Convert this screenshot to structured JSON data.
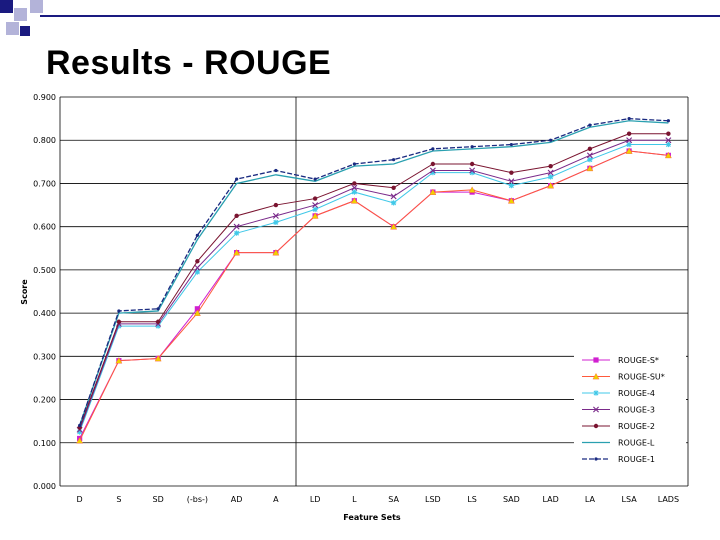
{
  "slide": {
    "title": "Results - ROUGE",
    "colors": {
      "square_dark": "#1a1a80",
      "square_light": "#b3b3d9",
      "title_line": "#1a1a80"
    }
  },
  "chart_data": {
    "type": "line",
    "xlabel": "Feature Sets",
    "ylabel": "Score",
    "ylim": [
      0,
      0.9
    ],
    "yticks": [
      "0.000",
      "0.100",
      "0.200",
      "0.300",
      "0.400",
      "0.500",
      "0.600",
      "0.700",
      "0.800",
      "0.900"
    ],
    "grid": "horizontal",
    "legend": "bottom-right",
    "categories": [
      "D",
      "S",
      "SD",
      "(-bs-)",
      "AD",
      "A",
      "LD",
      "L",
      "SA",
      "LSD",
      "LS",
      "SAD",
      "LAD",
      "LA",
      "LSA",
      "LADS"
    ],
    "series": [
      {
        "name": "ROUGE-S*",
        "color": "#d020d0",
        "values": [
          0.11,
          0.29,
          0.295,
          0.41,
          0.54,
          0.54,
          0.625,
          0.66,
          0.6,
          0.68,
          0.68,
          0.66,
          0.695,
          0.735,
          0.775,
          0.765
        ]
      },
      {
        "name": "ROUGE-SU*",
        "color": "#ff5a3c",
        "values": [
          0.105,
          0.29,
          0.295,
          0.4,
          0.54,
          0.54,
          0.625,
          0.66,
          0.6,
          0.68,
          0.685,
          0.66,
          0.695,
          0.735,
          0.775,
          0.765
        ]
      },
      {
        "name": "ROUGE-4",
        "color": "#40c8e8",
        "values": [
          0.125,
          0.37,
          0.37,
          0.495,
          0.585,
          0.61,
          0.64,
          0.68,
          0.655,
          0.725,
          0.725,
          0.695,
          0.715,
          0.755,
          0.79,
          0.79
        ]
      },
      {
        "name": "ROUGE-3",
        "color": "#7a2a8a",
        "values": [
          0.13,
          0.375,
          0.375,
          0.505,
          0.6,
          0.625,
          0.65,
          0.69,
          0.67,
          0.73,
          0.73,
          0.705,
          0.725,
          0.765,
          0.8,
          0.8
        ]
      },
      {
        "name": "ROUGE-2",
        "color": "#7a1430",
        "values": [
          0.135,
          0.38,
          0.38,
          0.52,
          0.625,
          0.65,
          0.665,
          0.7,
          0.69,
          0.745,
          0.745,
          0.725,
          0.74,
          0.78,
          0.815,
          0.815
        ]
      },
      {
        "name": "ROUGE-L",
        "color": "#2aa0b0",
        "values": [
          0.14,
          0.4,
          0.405,
          0.57,
          0.7,
          0.72,
          0.705,
          0.74,
          0.745,
          0.775,
          0.78,
          0.785,
          0.795,
          0.83,
          0.845,
          0.84
        ]
      },
      {
        "name": "ROUGE-1",
        "color": "#1a2a80",
        "values": [
          0.14,
          0.405,
          0.41,
          0.58,
          0.71,
          0.73,
          0.71,
          0.745,
          0.755,
          0.78,
          0.785,
          0.79,
          0.8,
          0.835,
          0.85,
          0.845
        ]
      }
    ]
  }
}
